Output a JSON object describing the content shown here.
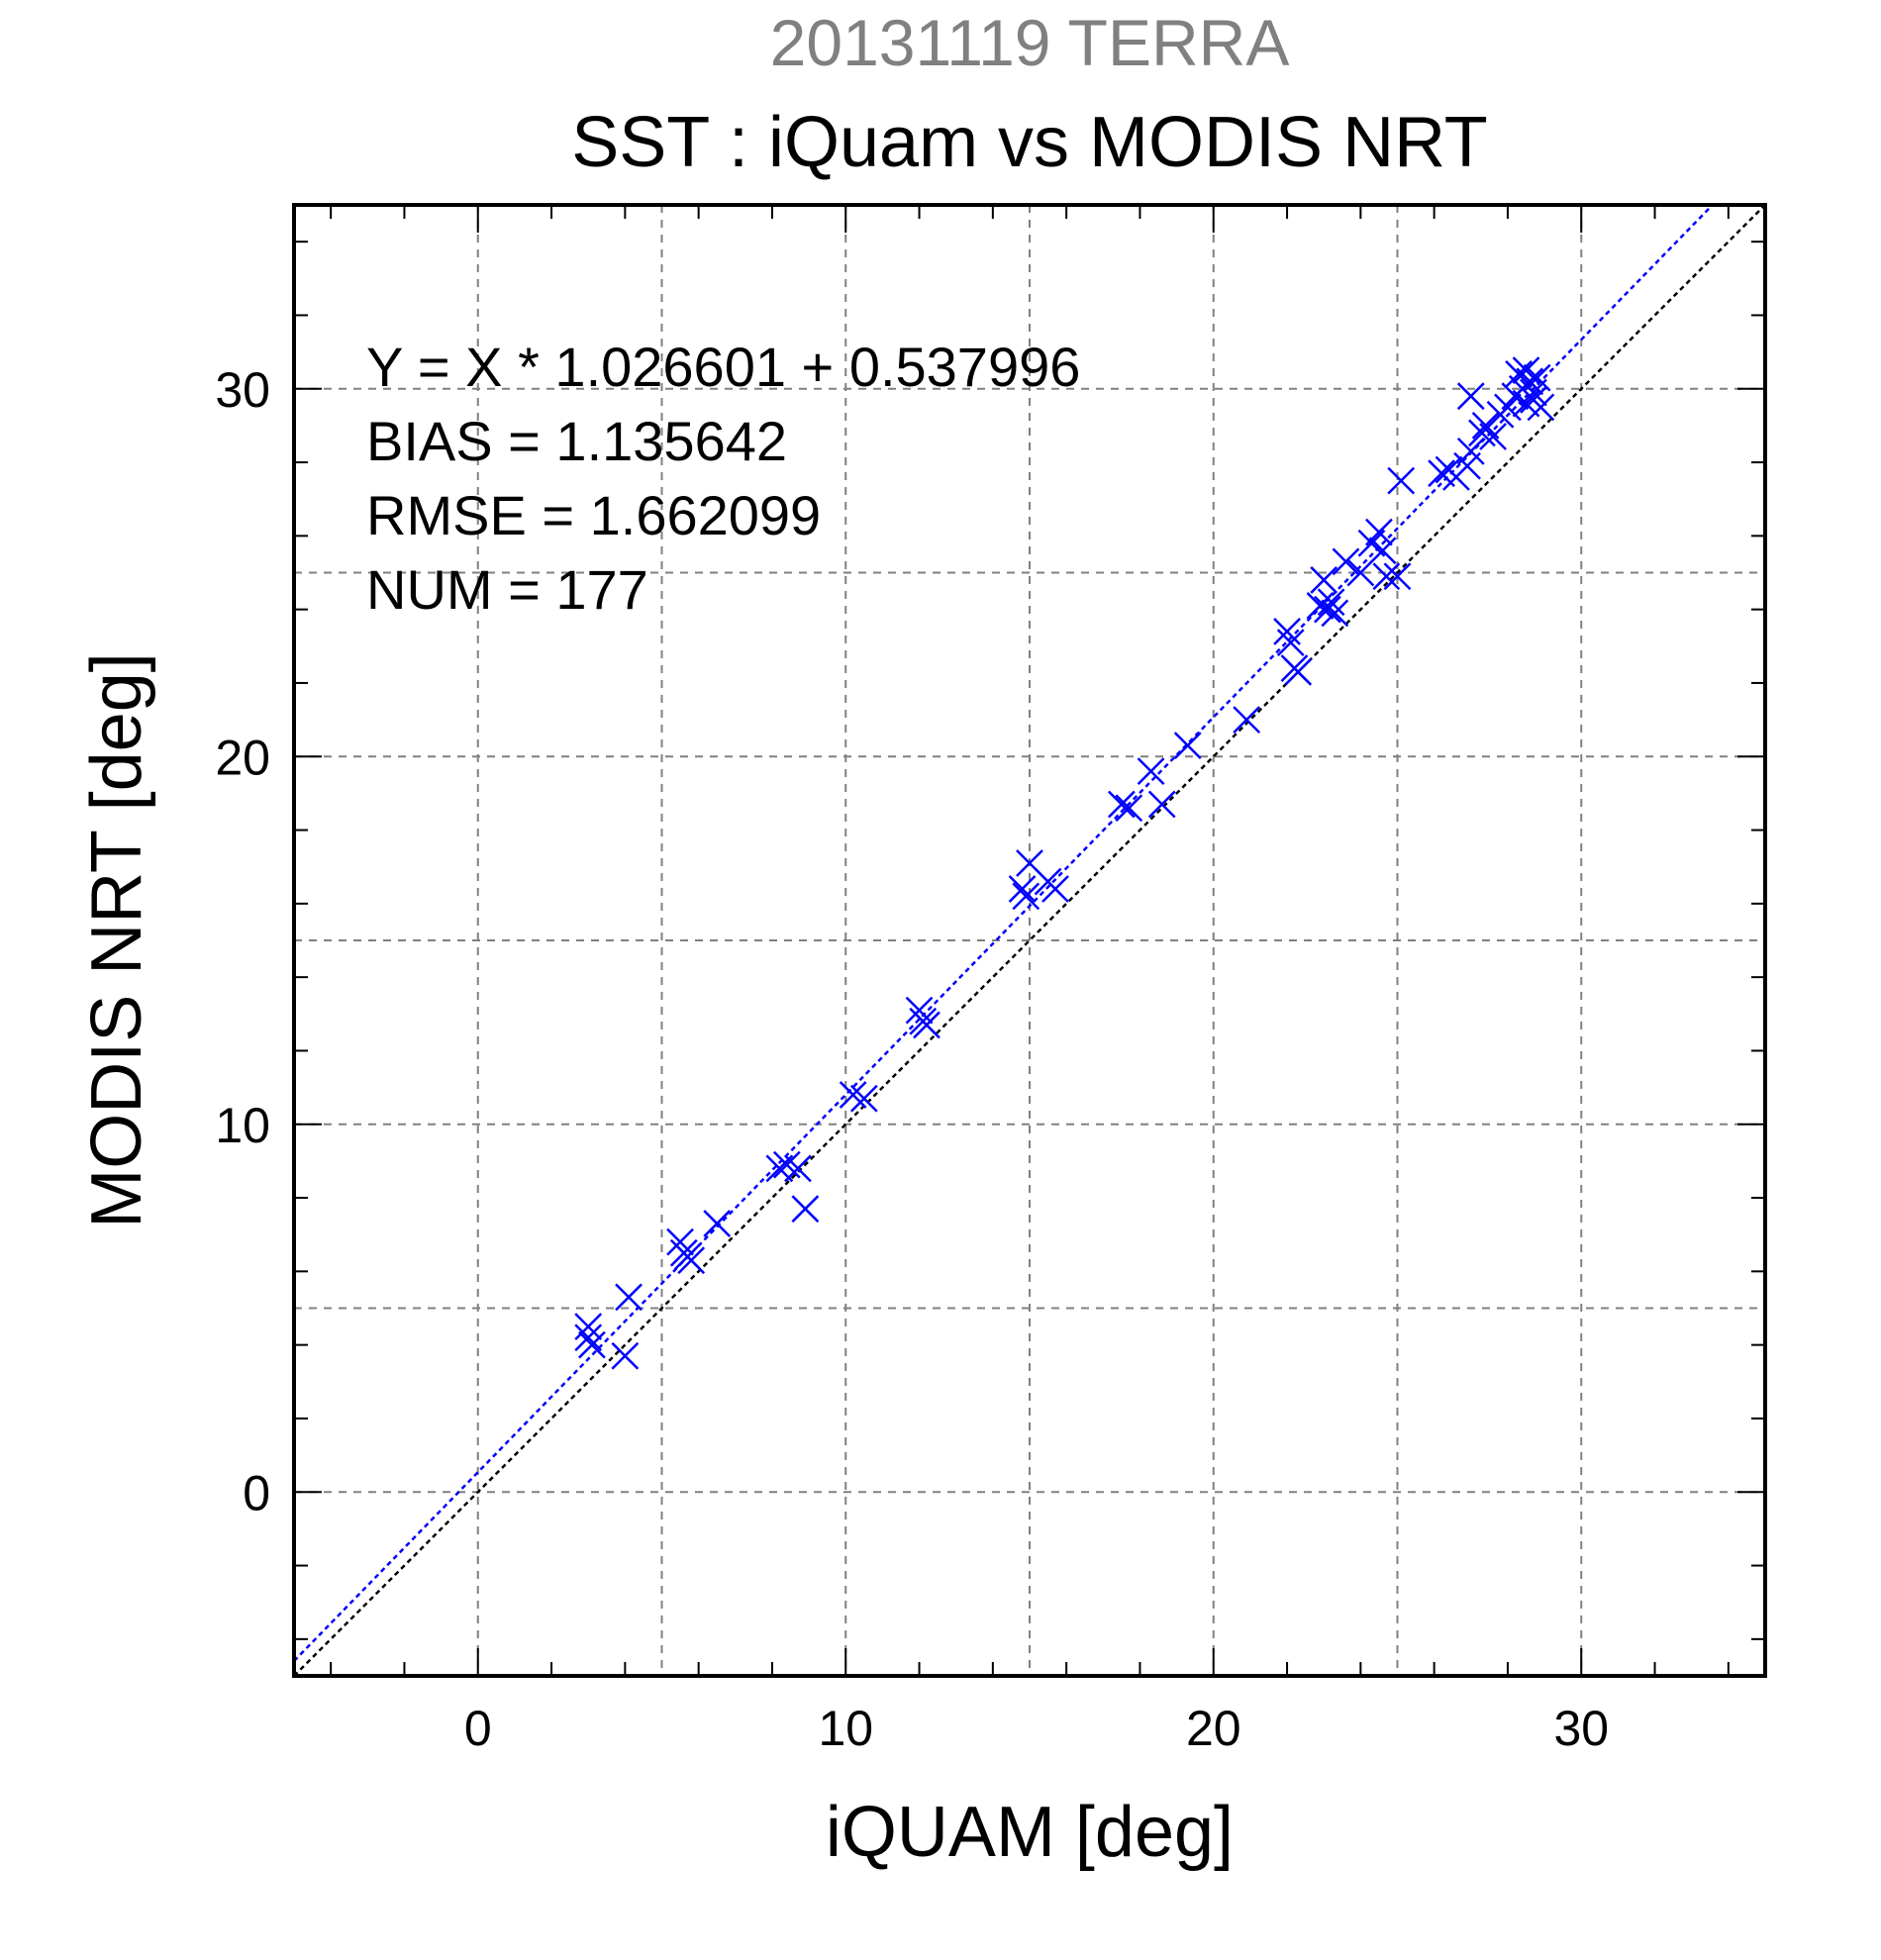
{
  "chart_data": {
    "type": "scatter",
    "title": "20131119 TERRA",
    "subtitle": "SST : iQuam vs MODIS NRT",
    "xlabel": "iQUAM [deg]",
    "ylabel": "MODIS NRT [deg]",
    "xlim": [
      -5,
      35
    ],
    "ylim": [
      -5,
      35
    ],
    "xticks": [
      0,
      10,
      20,
      30
    ],
    "yticks": [
      0,
      10,
      20,
      30
    ],
    "grid": true,
    "stats": [
      "Y = X * 1.026601 + 0.537996",
      "BIAS = 1.135642",
      "RMSE = 1.662099",
      "NUM = 177"
    ],
    "fit": {
      "slope": 1.026601,
      "intercept": 0.537996
    },
    "colors": {
      "points": "#0000ff",
      "fit_line": "#0000ff",
      "identity_line": "#000000",
      "grid": "#808080"
    },
    "series": [
      {
        "marker": "x",
        "points": [
          [
            3.0,
            4.5
          ],
          [
            3.0,
            4.2
          ],
          [
            3.1,
            4.0
          ],
          [
            4.0,
            3.7
          ],
          [
            4.1,
            5.3
          ],
          [
            5.5,
            6.8
          ],
          [
            5.6,
            6.5
          ],
          [
            5.7,
            6.4
          ],
          [
            5.8,
            6.3
          ],
          [
            6.5,
            7.3
          ],
          [
            8.2,
            8.8
          ],
          [
            8.4,
            8.9
          ],
          [
            8.7,
            8.8
          ],
          [
            8.9,
            7.7
          ],
          [
            10.2,
            10.8
          ],
          [
            10.5,
            10.7
          ],
          [
            12.0,
            13.1
          ],
          [
            12.1,
            12.8
          ],
          [
            12.2,
            12.7
          ],
          [
            14.8,
            16.4
          ],
          [
            14.9,
            16.2
          ],
          [
            15.0,
            17.1
          ],
          [
            15.5,
            16.6
          ],
          [
            15.7,
            16.4
          ],
          [
            17.5,
            18.7
          ],
          [
            17.7,
            18.6
          ],
          [
            18.3,
            19.6
          ],
          [
            18.6,
            18.7
          ],
          [
            19.3,
            20.3
          ],
          [
            20.9,
            21.0
          ],
          [
            22.0,
            23.4
          ],
          [
            22.1,
            23.1
          ],
          [
            22.2,
            22.4
          ],
          [
            22.3,
            22.3
          ],
          [
            22.9,
            24.1
          ],
          [
            23.0,
            24.8
          ],
          [
            23.1,
            24.0
          ],
          [
            23.2,
            24.2
          ],
          [
            23.3,
            23.9
          ],
          [
            23.6,
            25.3
          ],
          [
            24.0,
            25.0
          ],
          [
            24.3,
            25.8
          ],
          [
            24.5,
            26.1
          ],
          [
            24.6,
            25.6
          ],
          [
            24.7,
            24.9
          ],
          [
            25.0,
            24.9
          ],
          [
            25.1,
            27.5
          ],
          [
            26.2,
            27.7
          ],
          [
            26.4,
            27.8
          ],
          [
            26.6,
            27.6
          ],
          [
            26.9,
            27.9
          ],
          [
            27.0,
            28.3
          ],
          [
            27.0,
            29.8
          ],
          [
            27.3,
            28.8
          ],
          [
            27.4,
            29.0
          ],
          [
            27.6,
            28.7
          ],
          [
            27.8,
            29.3
          ],
          [
            28.0,
            29.5
          ],
          [
            28.2,
            29.8
          ],
          [
            28.3,
            30.4
          ],
          [
            28.4,
            30.0
          ],
          [
            28.5,
            29.6
          ],
          [
            28.6,
            30.2
          ],
          [
            28.7,
            29.9
          ],
          [
            28.8,
            30.3
          ],
          [
            28.9,
            29.5
          ],
          [
            28.5,
            30.5
          ],
          [
            28.7,
            29.7
          ]
        ]
      }
    ]
  }
}
